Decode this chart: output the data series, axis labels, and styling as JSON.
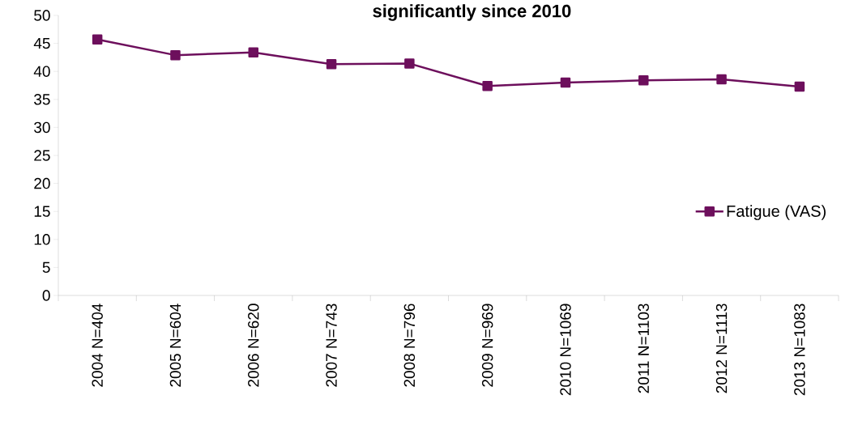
{
  "chart_data": {
    "type": "line",
    "title": "significantly since 2010",
    "categories": [
      "2004 N=404",
      "2005 N=604",
      "2006 N=620",
      "2007 N=743",
      "2008 N=796",
      "2009 N=969",
      "2010 N=1069",
      "2011 N=1103",
      "2012 N=1113",
      "2013 N=1083"
    ],
    "series": [
      {
        "name": "Fatigue (VAS)",
        "color": "#6d0f5c",
        "values": [
          45.7,
          42.9,
          43.4,
          41.3,
          41.4,
          37.4,
          38.0,
          38.4,
          38.6,
          37.3
        ]
      }
    ],
    "ylim": [
      0,
      50
    ],
    "yticks": [
      0,
      5,
      10,
      15,
      20,
      25,
      30,
      35,
      40,
      45,
      50
    ],
    "grid": false,
    "legend": "right",
    "marker": "square",
    "line_style": "solid"
  }
}
